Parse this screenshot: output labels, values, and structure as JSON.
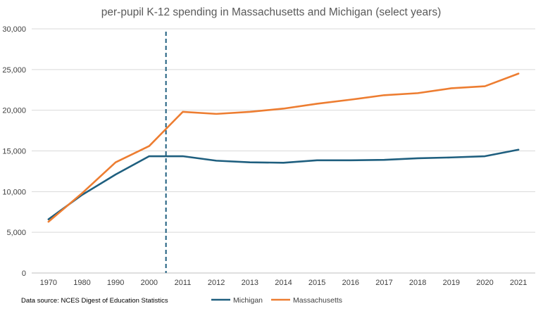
{
  "chart_data": {
    "type": "line",
    "title": "per-pupil K-12 spending in Massachusetts and Michigan (select years)",
    "xlabel": "",
    "ylabel": "",
    "categories": [
      "1970",
      "1980",
      "1990",
      "2000",
      "2011",
      "2012",
      "2013",
      "2014",
      "2015",
      "2016",
      "2017",
      "2018",
      "2019",
      "2020",
      "2021"
    ],
    "y_ticks": [
      "0",
      "5,000",
      "10,000",
      "15,000",
      "20,000",
      "25,000",
      "30,000"
    ],
    "ylim": [
      0,
      30000
    ],
    "grid": "horizontal",
    "legend_position": "bottom",
    "series": [
      {
        "name": "Michigan",
        "color": "#1f5f7f",
        "values": [
          6600,
          9600,
          12100,
          14350,
          14350,
          13800,
          13600,
          13550,
          13850,
          13850,
          13900,
          14100,
          14200,
          14350,
          15150
        ]
      },
      {
        "name": "Massachusetts",
        "color": "#ed7d31",
        "values": [
          6300,
          9800,
          13600,
          15600,
          19800,
          19550,
          19800,
          20200,
          20800,
          21300,
          21850,
          22100,
          22700,
          22950,
          24500
        ]
      }
    ],
    "annotations": {
      "divider_between": [
        "2000",
        "2011"
      ],
      "divider_color": "#1f5f7f"
    },
    "source_note": "Data source: NCES Digest of Education Statistics"
  }
}
